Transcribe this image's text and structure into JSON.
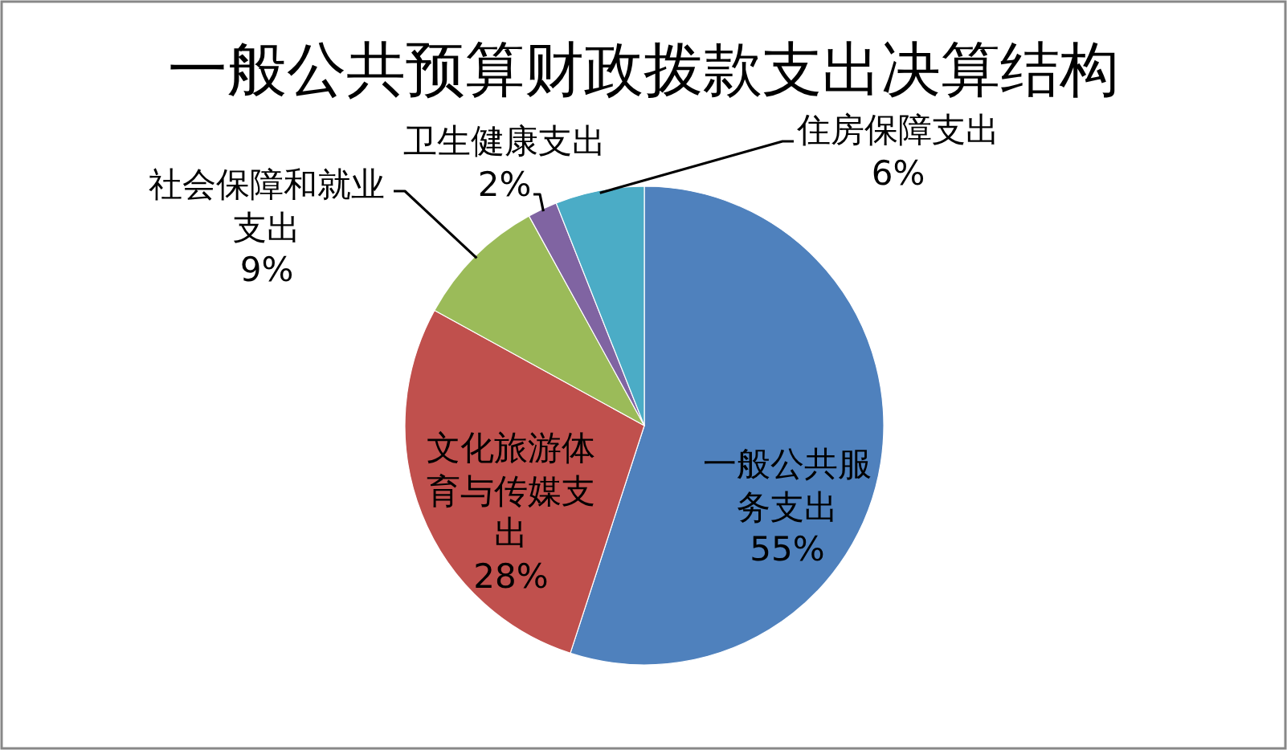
{
  "chart_data": {
    "type": "pie",
    "title": "一般公共预算财政拨款支出决算结构",
    "categories": [
      "一般公共服务支出",
      "文化旅游体育与传媒支出",
      "社会保障和就业支出",
      "卫生健康支出",
      "住房保障支出"
    ],
    "values": [
      55,
      28,
      9,
      2,
      6
    ],
    "value_labels": [
      "55%",
      "28%",
      "9%",
      "2%",
      "6%"
    ],
    "colors": [
      "#4f81bd",
      "#c0504d",
      "#9bbb59",
      "#8064a2",
      "#4bacc6"
    ]
  }
}
